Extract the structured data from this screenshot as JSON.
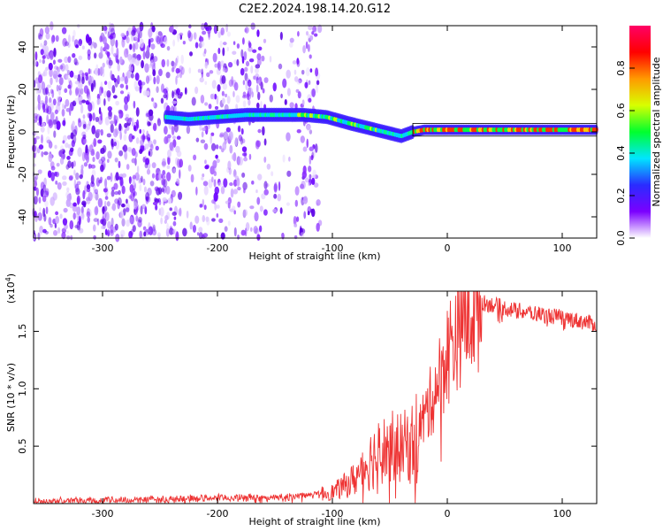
{
  "title": "C2E2.2024.198.14.20.G12",
  "chart_data": [
    {
      "type": "heatmap",
      "panel": "spectrogram",
      "xlabel": "Height of straight line (km)",
      "ylabel": "Frequency (Hz)",
      "xlim": [
        -360,
        130
      ],
      "ylim": [
        -50,
        50
      ],
      "xticks": [
        -300,
        -200,
        -100,
        0,
        100
      ],
      "xtick_labels": [
        "-300",
        "-200",
        "-100",
        "0",
        "100"
      ],
      "yticks": [
        -40,
        -20,
        0,
        20,
        40
      ],
      "ytick_labels": [
        "-40",
        "-20",
        "0",
        "20",
        "40"
      ],
      "ridge": {
        "x": [
          -245,
          -225,
          -200,
          -175,
          -150,
          -125,
          -105,
          -85,
          -70,
          -55,
          -40,
          -30,
          -20,
          0,
          20,
          50,
          80,
          100,
          130
        ],
        "y": [
          7,
          6,
          7,
          8,
          8,
          8,
          7,
          4,
          2,
          0,
          -2,
          0,
          1,
          1,
          1,
          1,
          1,
          1,
          1
        ]
      },
      "noise_region_x": [
        -360,
        -110
      ],
      "colorbar": {
        "label": "Normalized spectral amplitude",
        "range": [
          0.0,
          1.0
        ],
        "ticks": [
          0.0,
          0.2,
          0.4,
          0.6,
          0.8
        ],
        "tick_labels": [
          "0.0",
          "0.2",
          "0.4",
          "0.6",
          "0.8"
        ],
        "colors": [
          "#ffffff",
          "#7b00ff",
          "#2a2cff",
          "#00e5ff",
          "#00ff2e",
          "#d8ff00",
          "#ff9a00",
          "#ff0000",
          "#ff0066"
        ]
      }
    },
    {
      "type": "line",
      "panel": "snr",
      "xlabel": "Height of straight line (km)",
      "ylabel": "SNR (10 * v/v)",
      "y_multiplier": "(x10^4)",
      "xlim": [
        -360,
        130
      ],
      "ylim": [
        0,
        18500
      ],
      "xticks": [
        -300,
        -200,
        -100,
        0,
        100
      ],
      "xtick_labels": [
        "-300",
        "-200",
        "-100",
        "0",
        "100"
      ],
      "yticks": [
        5000,
        10000,
        15000
      ],
      "ytick_labels": [
        "0.5",
        "1.0",
        "1.5"
      ],
      "series": [
        {
          "color": "#ee3333",
          "x": [
            -360,
            -300,
            -250,
            -200,
            -150,
            -120,
            -100,
            -90,
            -80,
            -70,
            -60,
            -50,
            -40,
            -30,
            -20,
            -10,
            0,
            10,
            20,
            30,
            40,
            60,
            80,
            100,
            120,
            130
          ],
          "y": [
            200,
            300,
            350,
            500,
            500,
            700,
            1000,
            1500,
            2200,
            3500,
            4500,
            5000,
            4800,
            5500,
            7500,
            10000,
            13000,
            15500,
            17000,
            17500,
            17300,
            16800,
            16500,
            16200,
            15800,
            15600
          ]
        }
      ]
    }
  ]
}
